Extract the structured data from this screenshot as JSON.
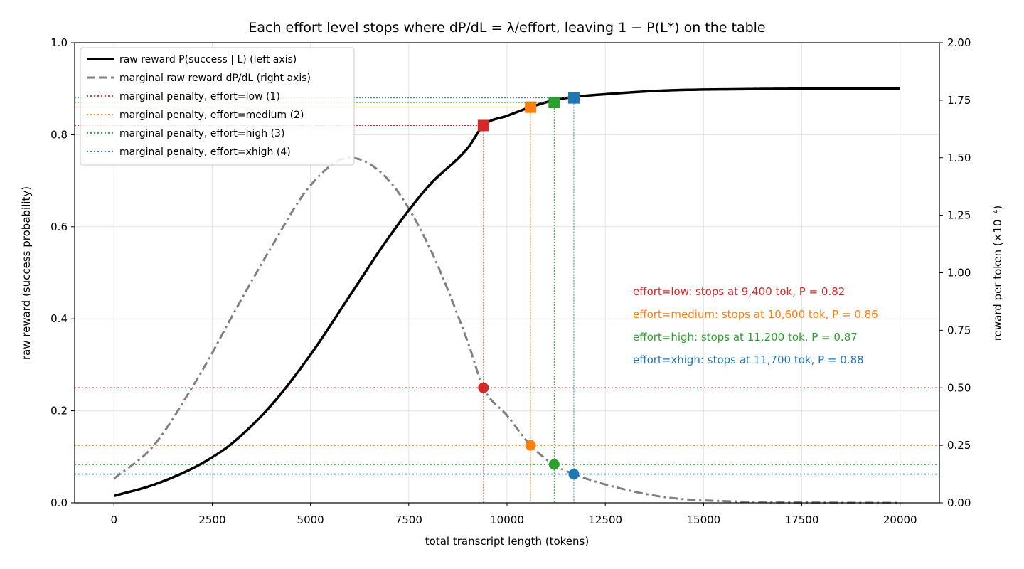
{
  "chart_data": {
    "type": "line",
    "title": "Each effort level stops where dP/dL = λ/effort, leaving 1 − P(L*) on the table",
    "xlabel": "total transcript length (tokens)",
    "ylabel_left": "raw reward (success probability)",
    "ylabel_right": "reward per token (×10⁻⁴)",
    "xlim": [
      -1000,
      21000
    ],
    "ylim_left": [
      0,
      1.0
    ],
    "ylim_right": [
      0,
      2.0
    ],
    "x_ticks": [
      0,
      2500,
      5000,
      7500,
      10000,
      12500,
      15000,
      17500,
      20000
    ],
    "y_left_ticks": [
      "0.0",
      "0.2",
      "0.4",
      "0.6",
      "0.8",
      "1.0"
    ],
    "y_right_ticks": [
      "0.00",
      "0.25",
      "0.50",
      "0.75",
      "1.00",
      "1.25",
      "1.50",
      "1.75",
      "2.00"
    ],
    "grid": true,
    "legend_position": "top-left",
    "legend": [
      "raw reward P(success | L)  (left axis)",
      "marginal raw reward dP/dL  (right axis)",
      "marginal penalty, effort=low (1)",
      "marginal penalty, effort=medium (2)",
      "marginal penalty, effort=high (3)",
      "marginal penalty, effort=xhigh (4)"
    ],
    "series": [
      {
        "name": "raw reward P(success | L)  (left axis)",
        "axis": "left",
        "color": "#000000",
        "x": [
          0,
          1000,
          2000,
          2500,
          3000,
          4000,
          5000,
          6000,
          7000,
          8000,
          9000,
          9400,
          10000,
          10600,
          11200,
          11700,
          12500,
          14000,
          16000,
          18000,
          20000
        ],
        "y": [
          0.015,
          0.039,
          0.075,
          0.099,
          0.129,
          0.212,
          0.322,
          0.45,
          0.578,
          0.688,
          0.771,
          0.82,
          0.841,
          0.86,
          0.875,
          0.882,
          0.888,
          0.896,
          0.899,
          0.9,
          0.9
        ]
      },
      {
        "name": "marginal raw reward dP/dL  (right axis)",
        "axis": "right",
        "color": "#808080",
        "x": [
          0,
          1000,
          2000,
          2500,
          3000,
          4000,
          5000,
          6000,
          7000,
          8000,
          9000,
          9400,
          10000,
          10600,
          11200,
          11700,
          12500,
          14000,
          16000,
          18000,
          20000
        ],
        "y": [
          0.105,
          0.247,
          0.505,
          0.652,
          0.81,
          1.11,
          1.38,
          1.5,
          1.4,
          1.12,
          0.7,
          0.5,
          0.38,
          0.25,
          0.165,
          0.125,
          0.08,
          0.025,
          0.005,
          0.001,
          0.0
        ]
      }
    ],
    "effort_levels": [
      {
        "label": "effort=low",
        "color": "#d62728",
        "penalty": 0.5,
        "stop_tokens": 9400,
        "P": 0.82,
        "annotation": "effort=low: stops at 9,400 tok, P = 0.82"
      },
      {
        "label": "effort=medium",
        "color": "#ff7f0e",
        "penalty": 0.25,
        "stop_tokens": 10600,
        "P": 0.86,
        "annotation": "effort=medium: stops at 10,600 tok, P = 0.86"
      },
      {
        "label": "effort=high",
        "color": "#2ca02c",
        "penalty": 0.167,
        "stop_tokens": 11200,
        "P": 0.87,
        "annotation": "effort=high: stops at 11,200 tok, P = 0.87"
      },
      {
        "label": "effort=xhigh",
        "color": "#1f77b4",
        "penalty": 0.125,
        "stop_tokens": 11700,
        "P": 0.88,
        "annotation": "effort=xhigh: stops at 11,700 tok, P = 0.88"
      }
    ]
  }
}
